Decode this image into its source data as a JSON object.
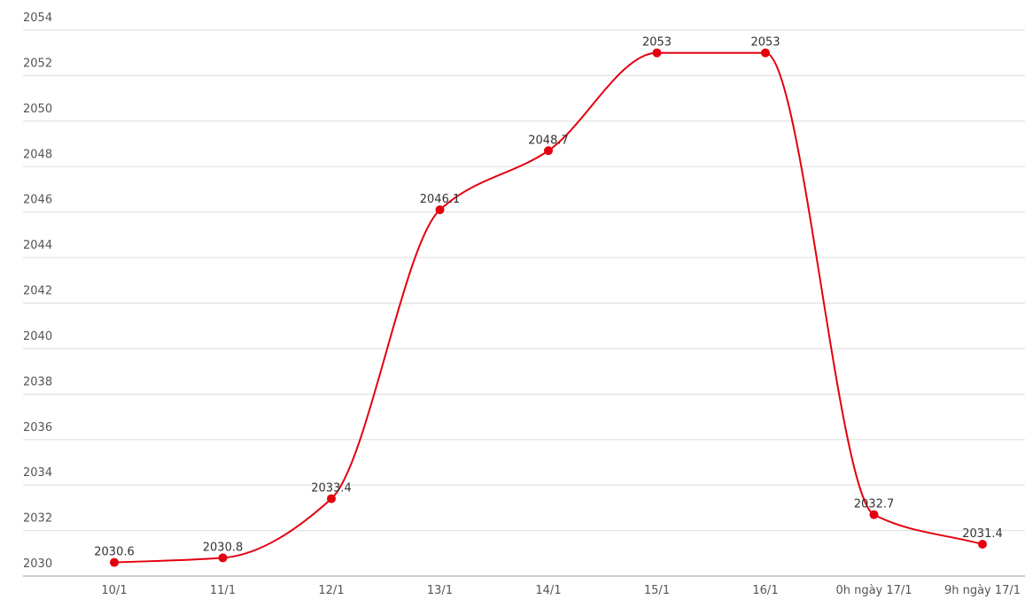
{
  "chart_data": {
    "type": "line",
    "categories": [
      "10/1",
      "11/1",
      "12/1",
      "13/1",
      "14/1",
      "15/1",
      "16/1",
      "0h ngày 17/1",
      "9h ngày 17/1"
    ],
    "series": [
      {
        "color": "#e3000f",
        "values": [
          2030.6,
          2030.8,
          2033.4,
          2046.1,
          2048.7,
          2053,
          2053,
          2032.7,
          2031.4
        ]
      }
    ],
    "ylim": [
      2030,
      2054
    ],
    "yticks": [
      2030,
      2032,
      2034,
      2036,
      2038,
      2040,
      2042,
      2044,
      2046,
      2048,
      2050,
      2052,
      2054
    ],
    "grid": true,
    "smooth": true,
    "data_labels": true
  }
}
